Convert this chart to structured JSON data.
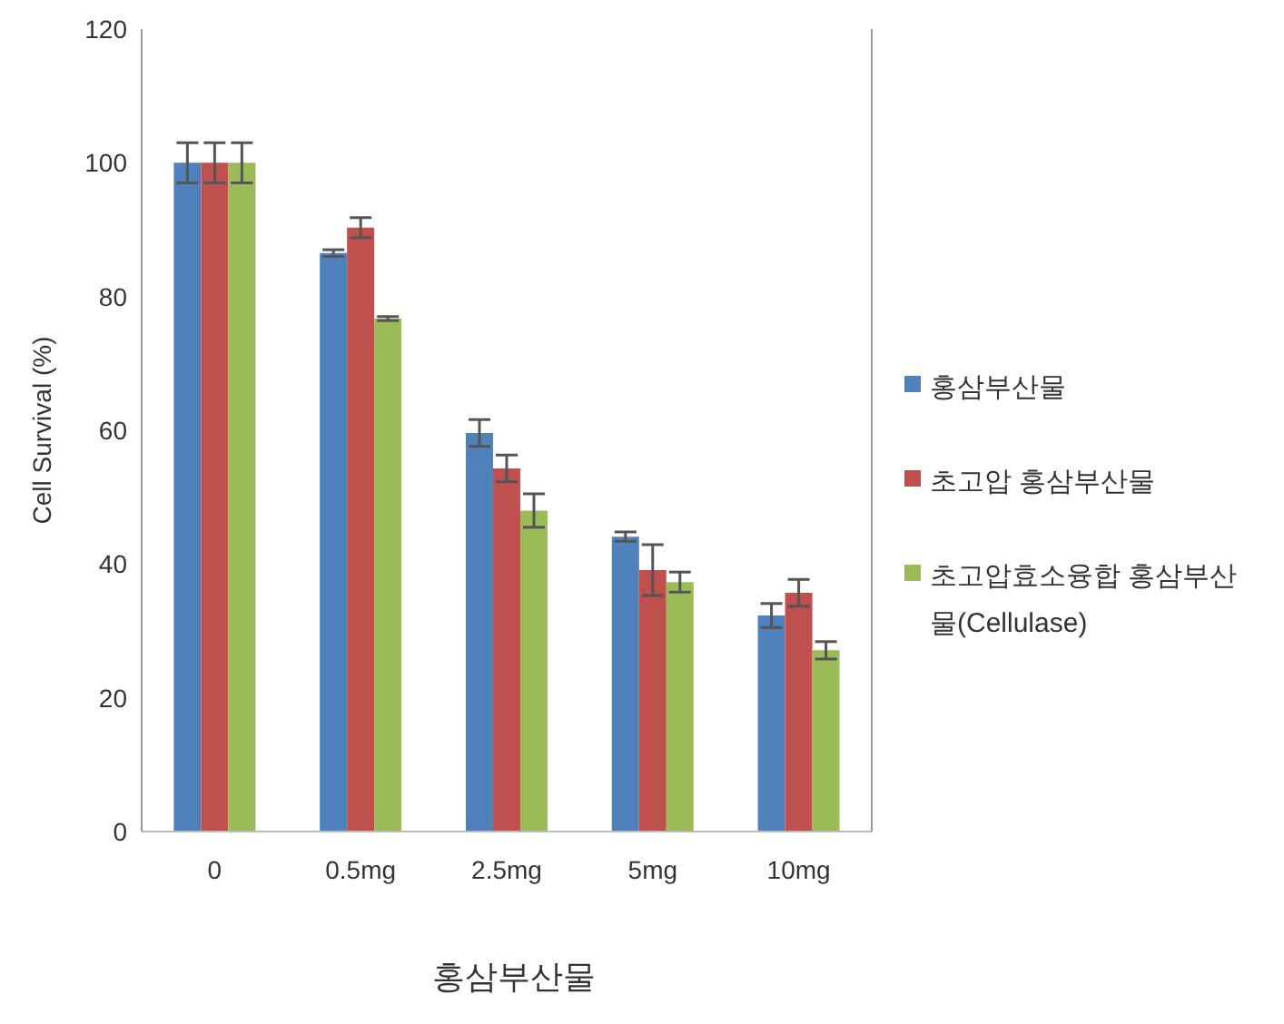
{
  "chart_data": {
    "type": "bar",
    "xlabel": "홍삼부산물",
    "ylabel": "Cell Survival (%)",
    "categories": [
      "0",
      "0.5mg",
      "2.5mg",
      "5mg",
      "10mg"
    ],
    "series": [
      {
        "name": "홍삼부산물",
        "color": "#4f81bd",
        "values": [
          100,
          86.5,
          59.6,
          44.1,
          32.3
        ],
        "errors": [
          3,
          0.5,
          2,
          0.7,
          1.8
        ]
      },
      {
        "name": "초고압 홍삼부산물",
        "color": "#c0504d",
        "values": [
          100,
          90.3,
          54.3,
          39.1,
          35.7
        ],
        "errors": [
          3,
          1.5,
          2,
          3.8,
          2
        ]
      },
      {
        "name": "초고압효소융합 홍삼부산물(Cellulase)",
        "color": "#9bbb59",
        "values": [
          100,
          76.7,
          48,
          37.3,
          27.1
        ],
        "errors": [
          3,
          0.3,
          2.5,
          1.5,
          1.3
        ]
      }
    ],
    "ylim": [
      0,
      120
    ],
    "yticks": [
      0,
      20,
      40,
      60,
      80,
      100,
      120
    ],
    "grid": false,
    "legend": "right"
  }
}
